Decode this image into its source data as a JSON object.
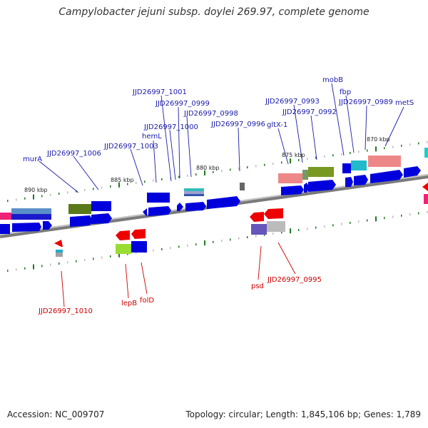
{
  "title": "Campylobacter jejuni subsp. doylei 269.97, complete genome",
  "footer": {
    "accession": "Accession: NC_009707",
    "summary": "Topology: circular; Length: 1,845,106 bp; Genes: 1,789"
  },
  "colors": {
    "backbone": "#888888",
    "forward_gene": "#0000dd",
    "reverse_gene": "#ee0000",
    "upper_label": "#1a1aaa",
    "lower_label": "#cc0000",
    "tick": "#1e7a1e"
  },
  "scale_labels": [
    "890 kbp",
    "885 kbp",
    "880 kbp",
    "875 kbp",
    "870 kbp"
  ],
  "upper_labels": [
    "murA",
    "JJD26997_1006",
    "JJD26997_1003",
    "hemL",
    "JJD26997_1000",
    "JJD26997_1001",
    "JJD26997_0999",
    "JJD26997_0998",
    "JJD26997_0996",
    "gltX-1",
    "JJD26997_0993",
    "JJD26997_0992",
    "mobB",
    "fbp",
    "JJD26997_0989",
    "metS"
  ],
  "lower_labels": [
    "JJD26997_1010",
    "lepB",
    "folD",
    "psd",
    "JJD26997_0995"
  ]
}
